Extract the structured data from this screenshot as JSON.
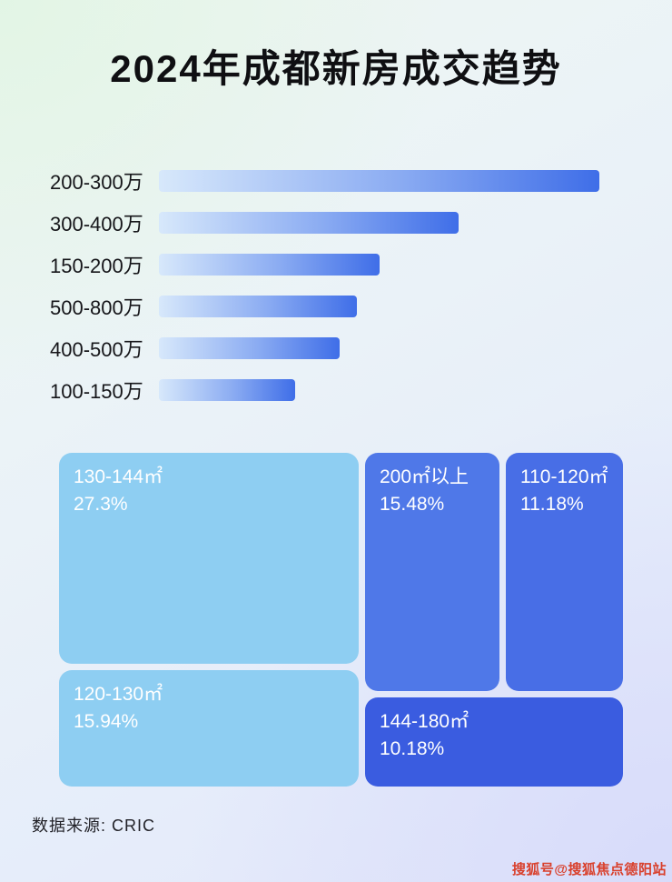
{
  "page": {
    "title": "2024年成都新房成交趋势",
    "source": "数据来源: CRIC",
    "watermark": "搜狐号@搜狐焦点德阳站"
  },
  "chart_data": [
    {
      "type": "bar",
      "orientation": "horizontal",
      "title": "2024年成都新房成交趋势",
      "categories": [
        "200-300万",
        "300-400万",
        "150-200万",
        "500-800万",
        "400-500万",
        "100-150万"
      ],
      "values": [
        100,
        68,
        50,
        45,
        41,
        31
      ],
      "value_note": "bars carry no numeric labels; values are relative lengths estimated from pixels (longest bar = 100)",
      "xlim": [
        0,
        100
      ],
      "grid": false,
      "legend": "none",
      "bar_gradient": [
        "#d7e8fb",
        "#3f6ee8"
      ]
    },
    {
      "type": "treemap",
      "title": "",
      "items": [
        {
          "label": "130-144㎡",
          "percent": "27.3%",
          "value": 27.3,
          "color": "#8ecef2"
        },
        {
          "label": "120-130㎡",
          "percent": "15.94%",
          "value": 15.94,
          "color": "#8ecef2"
        },
        {
          "label": "200㎡以上",
          "percent": "15.48%",
          "value": 15.48,
          "color": "#4f78e8"
        },
        {
          "label": "110-120㎡",
          "percent": "11.18%",
          "value": 11.18,
          "color": "#486ee6"
        },
        {
          "label": "144-180㎡",
          "percent": "10.18%",
          "value": 10.18,
          "color": "#3a5ce0"
        }
      ]
    }
  ]
}
